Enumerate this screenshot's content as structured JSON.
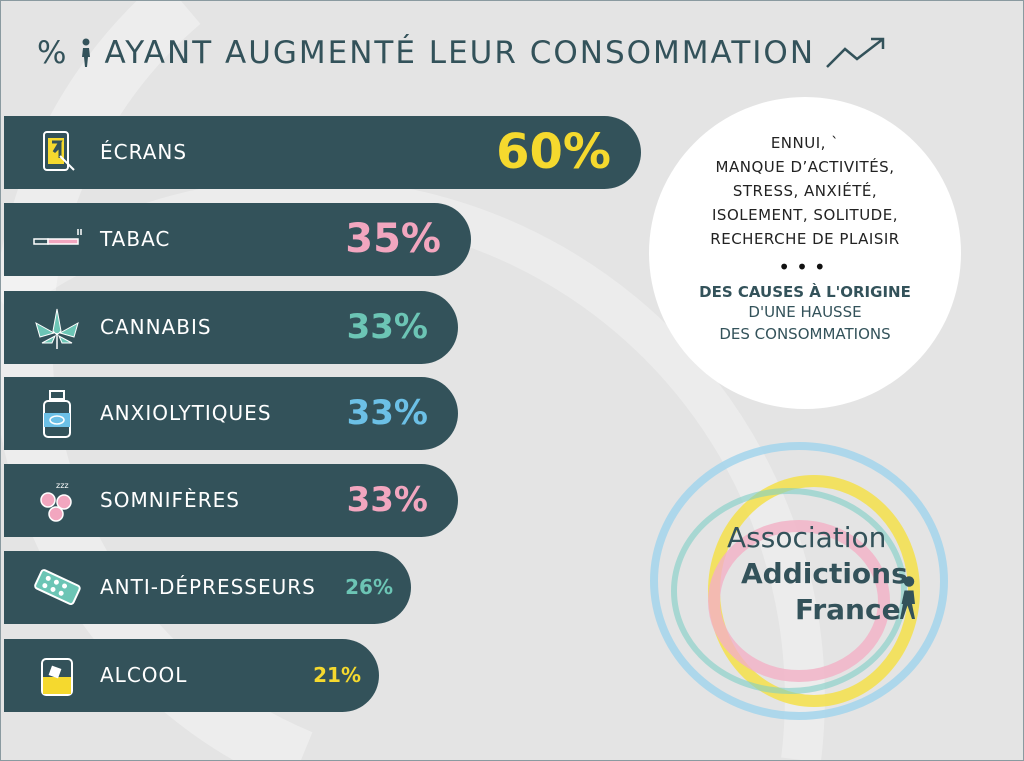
{
  "title": "AYANT AUGMENTÉ LEUR CONSOMMATION",
  "title_prefix": "%",
  "chart_data": {
    "type": "bar",
    "orientation": "horizontal",
    "title": "% AYANT AUGMENTÉ LEUR CONSOMMATION",
    "categories": [
      "ÉCRANS",
      "TABAC",
      "CANNABIS",
      "ANXIOLYTIQUES",
      "SOMNIFÈRES",
      "ANTI-DÉPRESSEURS",
      "ALCOOL"
    ],
    "values": [
      60,
      35,
      33,
      33,
      33,
      26,
      21
    ],
    "labels": [
      "60%",
      "35%",
      "33%",
      "33%",
      "33%",
      "26%",
      "21%"
    ],
    "value_colors": [
      "#f5d92e",
      "#f2a6bf",
      "#6cc5b5",
      "#6cc0e6",
      "#f2a6bf",
      "#6cc5b5",
      "#f5d92e"
    ],
    "icons": [
      "tablet-icon",
      "cigarette-icon",
      "cannabis-leaf-icon",
      "medicine-bottle-icon",
      "sleeping-pills-icon",
      "pill-blister-icon",
      "whisky-glass-icon"
    ],
    "bar_color": "#33525a"
  },
  "causes": {
    "lines": [
      "ENNUI, `",
      "MANQUE D’ACTIVITÉS,",
      "STRESS, ANXIÉTÉ,",
      "ISOLEMENT, SOLITUDE,",
      "RECHERCHE DE PLAISIR"
    ],
    "dots": "•••",
    "conclusion_bold": "DES CAUSES À L'ORIGINE",
    "conclusion_1": "D'UNE HAUSSE",
    "conclusion_2": "DES CONSOMMATIONS"
  },
  "logo": {
    "line1": "Association",
    "line2": "Addictions",
    "line3": "France"
  }
}
